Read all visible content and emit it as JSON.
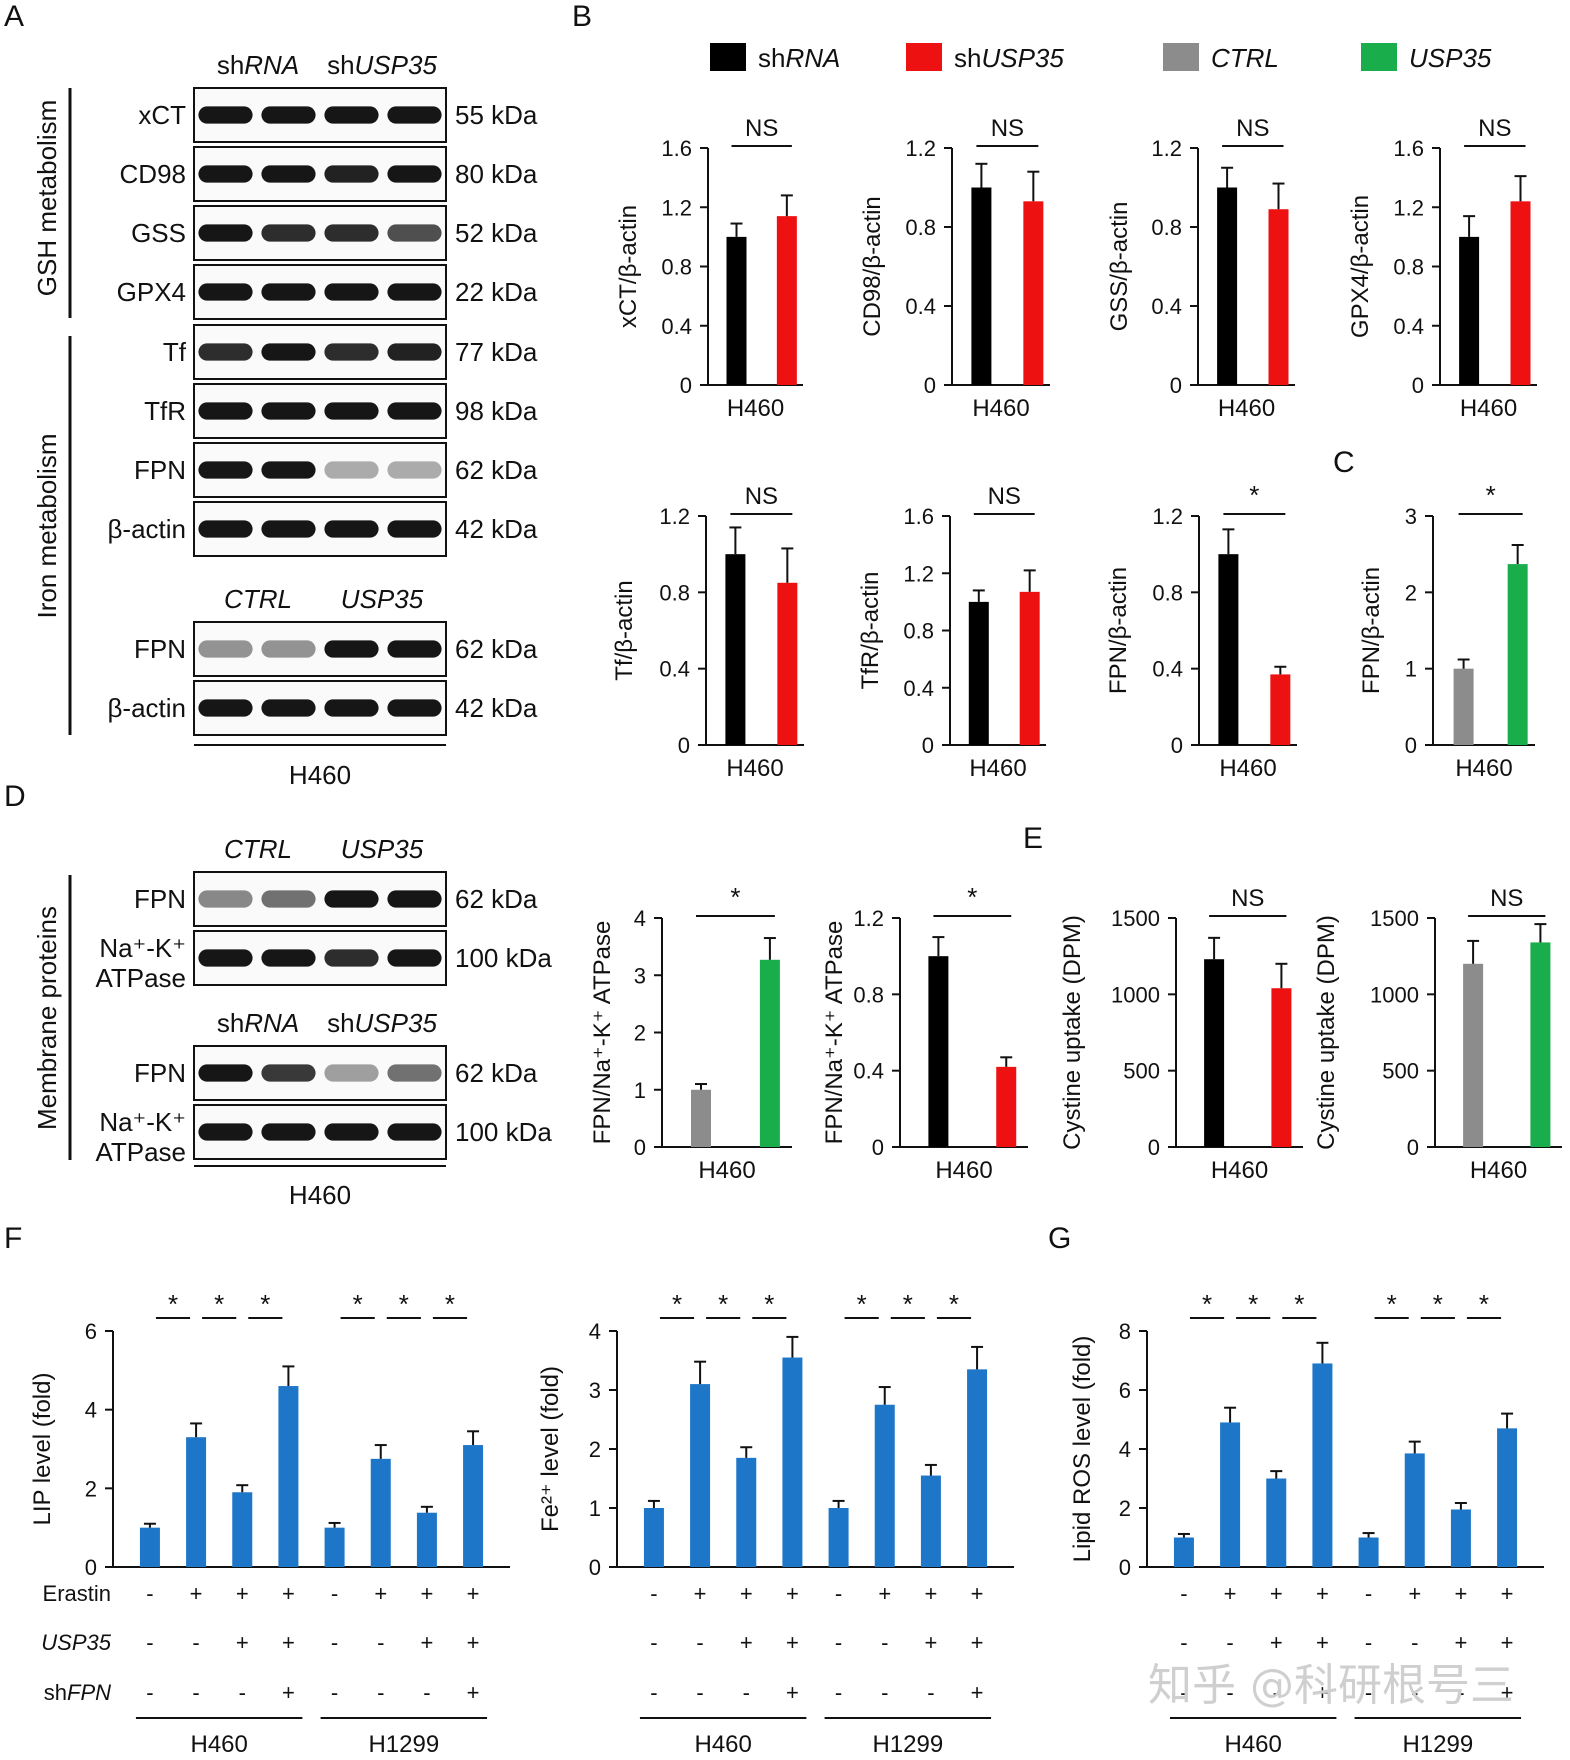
{
  "colors": {
    "shRNA": "#000000",
    "shUSP35": "#ee1111",
    "CTRL": "#8c8c8c",
    "USP35": "#1aad4b",
    "blue": "#1d76c8"
  },
  "panels": {
    "A": "A",
    "B": "B",
    "C": "C",
    "D": "D",
    "E": "E",
    "F": "F",
    "G": "G"
  },
  "legend": [
    {
      "pre": "sh",
      "it": "RNA",
      "color": "#000000"
    },
    {
      "pre": "sh",
      "it": "USP35",
      "color": "#ee1111"
    },
    {
      "pre": "",
      "it": "CTRL",
      "color": "#8c8c8c"
    },
    {
      "pre": "",
      "it": "USP35",
      "color": "#1aad4b"
    }
  ],
  "blotA": {
    "header1": {
      "a_pre": "sh",
      "a_it": "RNA",
      "b_pre": "sh",
      "b_it": "USP35"
    },
    "header2": {
      "a": "CTRL",
      "b": "USP35"
    },
    "group1": "GSH metabolism",
    "group2": "Iron metabolism",
    "rows1": [
      {
        "label": "xCT",
        "kda": "55 kDa",
        "lanes": [
          1,
          1,
          1,
          1
        ]
      },
      {
        "label": "CD98",
        "kda": "80 kDa",
        "lanes": [
          1,
          1,
          0.95,
          1
        ]
      },
      {
        "label": "GSS",
        "kda": "52 kDa",
        "lanes": [
          1,
          0.9,
          0.9,
          0.75
        ]
      },
      {
        "label": "GPX4",
        "kda": "22 kDa",
        "lanes": [
          1,
          1,
          1,
          1
        ]
      },
      {
        "label": "Tf",
        "kda": "77 kDa",
        "lanes": [
          0.9,
          1,
          0.9,
          0.95
        ]
      },
      {
        "label": "TfR",
        "kda": "98 kDa",
        "lanes": [
          1,
          1,
          1,
          1
        ]
      },
      {
        "label": "FPN",
        "kda": "62 kDa",
        "lanes": [
          1,
          1,
          0.35,
          0.35
        ]
      },
      {
        "label": "β-actin",
        "kda": "42 kDa",
        "lanes": [
          1,
          1,
          1,
          1
        ]
      }
    ],
    "rows2": [
      {
        "label": "FPN",
        "kda": "62 kDa",
        "lanes": [
          0.45,
          0.45,
          1,
          1
        ]
      },
      {
        "label": "β-actin",
        "kda": "42 kDa",
        "lanes": [
          1,
          1,
          1,
          1
        ]
      }
    ],
    "cell": "H460"
  },
  "blotD": {
    "group": "Membrane proteins",
    "header1": {
      "a": "CTRL",
      "b": "USP35"
    },
    "header2": {
      "a_pre": "sh",
      "a_it": "RNA",
      "b_pre": "sh",
      "b_it": "USP35"
    },
    "rows1": [
      {
        "label": "FPN",
        "kda": "62 kDa",
        "lanes": [
          0.5,
          0.6,
          1,
          1
        ]
      },
      {
        "label": "Na⁺-K⁺",
        "label2": "ATPase",
        "kda": "100 kDa",
        "lanes": [
          1,
          1,
          0.9,
          1
        ]
      }
    ],
    "rows2": [
      {
        "label": "FPN",
        "kda": "62 kDa",
        "lanes": [
          1,
          0.85,
          0.4,
          0.6
        ]
      },
      {
        "label": "Na⁺-K⁺",
        "label2": "ATPase",
        "kda": "100 kDa",
        "lanes": [
          1,
          1,
          1,
          1
        ]
      }
    ],
    "cell": "H460"
  },
  "chart_data": [
    {
      "id": "B1",
      "type": "bar",
      "panel": "B",
      "ylabel": "xCT/β-actin",
      "xlabel": "H460",
      "ylim": [
        0,
        1.6
      ],
      "ticks": [
        "0",
        "0.4",
        "0.8",
        "1.2",
        "1.6"
      ],
      "categories": [
        "shRNA",
        "shUSP35"
      ],
      "values": [
        1.0,
        1.14
      ],
      "errors": [
        0.09,
        0.14
      ],
      "colors": [
        "#000000",
        "#ee1111"
      ],
      "sig": "NS"
    },
    {
      "id": "B2",
      "type": "bar",
      "panel": "B",
      "ylabel": "CD98/β-actin",
      "xlabel": "H460",
      "ylim": [
        0,
        1.2
      ],
      "ticks": [
        "0",
        "0.4",
        "0.8",
        "1.2"
      ],
      "categories": [
        "shRNA",
        "shUSP35"
      ],
      "values": [
        1.0,
        0.93
      ],
      "errors": [
        0.12,
        0.15
      ],
      "colors": [
        "#000000",
        "#ee1111"
      ],
      "sig": "NS"
    },
    {
      "id": "B3",
      "type": "bar",
      "panel": "B",
      "ylabel": "GSS/β-actin",
      "xlabel": "H460",
      "ylim": [
        0,
        1.2
      ],
      "ticks": [
        "0",
        "0.4",
        "0.8",
        "1.2"
      ],
      "categories": [
        "shRNA",
        "shUSP35"
      ],
      "values": [
        1.0,
        0.89
      ],
      "errors": [
        0.1,
        0.13
      ],
      "colors": [
        "#000000",
        "#ee1111"
      ],
      "sig": "NS"
    },
    {
      "id": "B4",
      "type": "bar",
      "panel": "B",
      "ylabel": "GPX4/β-actin",
      "xlabel": "H460",
      "ylim": [
        0,
        1.6
      ],
      "ticks": [
        "0",
        "0.4",
        "0.8",
        "1.2",
        "1.6"
      ],
      "categories": [
        "shRNA",
        "shUSP35"
      ],
      "values": [
        1.0,
        1.24
      ],
      "errors": [
        0.14,
        0.17
      ],
      "colors": [
        "#000000",
        "#ee1111"
      ],
      "sig": "NS"
    },
    {
      "id": "B5",
      "type": "bar",
      "panel": "B",
      "ylabel": "Tf/β-actin",
      "xlabel": "H460",
      "ylim": [
        0,
        1.2
      ],
      "ticks": [
        "0",
        "0.4",
        "0.8",
        "1.2"
      ],
      "categories": [
        "shRNA",
        "shUSP35"
      ],
      "values": [
        1.0,
        0.85
      ],
      "errors": [
        0.14,
        0.18
      ],
      "colors": [
        "#000000",
        "#ee1111"
      ],
      "sig": "NS"
    },
    {
      "id": "B6",
      "type": "bar",
      "panel": "B",
      "ylabel": "TfR/β-actin",
      "xlabel": "H460",
      "ylim": [
        0,
        1.6
      ],
      "ticks": [
        "0",
        "0.4",
        "0.8",
        "1.2",
        "1.6"
      ],
      "categories": [
        "shRNA",
        "shUSP35"
      ],
      "values": [
        1.0,
        1.07
      ],
      "errors": [
        0.08,
        0.15
      ],
      "colors": [
        "#000000",
        "#ee1111"
      ],
      "sig": "NS"
    },
    {
      "id": "B7",
      "type": "bar",
      "panel": "B",
      "ylabel": "FPN/β-actin",
      "xlabel": "H460",
      "ylim": [
        0,
        1.2
      ],
      "ticks": [
        "0",
        "0.4",
        "0.8",
        "1.2"
      ],
      "categories": [
        "shRNA",
        "shUSP35"
      ],
      "values": [
        1.0,
        0.37
      ],
      "errors": [
        0.13,
        0.04
      ],
      "colors": [
        "#000000",
        "#ee1111"
      ],
      "sig": "*"
    },
    {
      "id": "C",
      "type": "bar",
      "panel": "C",
      "ylabel": "FPN/β-actin",
      "xlabel": "H460",
      "ylim": [
        0,
        3
      ],
      "ticks": [
        "0",
        "1",
        "2",
        "3"
      ],
      "categories": [
        "CTRL",
        "USP35"
      ],
      "values": [
        1.0,
        2.37
      ],
      "errors": [
        0.12,
        0.25
      ],
      "colors": [
        "#8c8c8c",
        "#1aad4b"
      ],
      "sig": "*"
    },
    {
      "id": "D1",
      "type": "bar",
      "panel": "D",
      "ylabel": "FPN/Na⁺-K⁺ ATPase",
      "xlabel": "H460",
      "ylim": [
        0,
        4
      ],
      "ticks": [
        "0",
        "1",
        "2",
        "3",
        "4"
      ],
      "categories": [
        "CTRL",
        "USP35"
      ],
      "values": [
        1.0,
        3.27
      ],
      "errors": [
        0.1,
        0.38
      ],
      "colors": [
        "#8c8c8c",
        "#1aad4b"
      ],
      "sig": "*"
    },
    {
      "id": "D2",
      "type": "bar",
      "panel": "D",
      "ylabel": "FPN/Na⁺-K⁺ ATPase",
      "xlabel": "H460",
      "ylim": [
        0,
        1.2
      ],
      "ticks": [
        "0",
        "0.4",
        "0.8",
        "1.2"
      ],
      "categories": [
        "shRNA",
        "shUSP35"
      ],
      "values": [
        1.0,
        0.42
      ],
      "errors": [
        0.1,
        0.05
      ],
      "colors": [
        "#000000",
        "#ee1111"
      ],
      "sig": "*"
    },
    {
      "id": "E1",
      "type": "bar",
      "panel": "E",
      "ylabel": "Cystine uptake (DPM)",
      "xlabel": "H460",
      "ylim": [
        0,
        1500
      ],
      "ticks": [
        "0",
        "500",
        "1000",
        "1500"
      ],
      "categories": [
        "shRNA",
        "shUSP35"
      ],
      "values": [
        1230,
        1040
      ],
      "errors": [
        140,
        160
      ],
      "colors": [
        "#000000",
        "#ee1111"
      ],
      "sig": "NS"
    },
    {
      "id": "E2",
      "type": "bar",
      "panel": "E",
      "ylabel": "Cystine uptake (DPM)",
      "xlabel": "H460",
      "ylim": [
        0,
        1500
      ],
      "ticks": [
        "0",
        "500",
        "1000",
        "1500"
      ],
      "categories": [
        "CTRL",
        "USP35"
      ],
      "values": [
        1200,
        1340
      ],
      "errors": [
        150,
        120
      ],
      "colors": [
        "#8c8c8c",
        "#1aad4b"
      ],
      "sig": "NS"
    },
    {
      "id": "F1",
      "type": "bar",
      "panel": "F",
      "ylabel": "LIP level (fold)",
      "ylim": [
        0,
        6
      ],
      "ticks": [
        "0",
        "2",
        "4",
        "6"
      ],
      "values": [
        1.0,
        3.3,
        1.9,
        4.6,
        1.0,
        2.75,
        1.38,
        3.1
      ],
      "errors": [
        0.1,
        0.35,
        0.18,
        0.5,
        0.12,
        0.35,
        0.15,
        0.35
      ],
      "color": "#1d76c8",
      "sig": [
        "*",
        "*",
        "*",
        "*",
        "*",
        "*"
      ],
      "rowlabels": [
        {
          "pre": "",
          "it": "",
          "post": "Erastin"
        },
        {
          "pre": "",
          "it": "USP35",
          "post": ""
        },
        {
          "pre": "sh",
          "it": "FPN",
          "post": ""
        }
      ],
      "signs": [
        [
          "-",
          "+",
          "+",
          "+",
          "-",
          "+",
          "+",
          "+"
        ],
        [
          "-",
          "-",
          "+",
          "+",
          "-",
          "-",
          "+",
          "+"
        ],
        [
          "-",
          "-",
          "-",
          "+",
          "-",
          "-",
          "-",
          "+"
        ]
      ],
      "groups": [
        "H460",
        "H1299"
      ]
    },
    {
      "id": "F2",
      "type": "bar",
      "panel": "F",
      "ylabel": "Fe²⁺ level (fold)",
      "ylim": [
        0,
        4
      ],
      "ticks": [
        "0",
        "1",
        "2",
        "3",
        "4"
      ],
      "values": [
        1.0,
        3.1,
        1.85,
        3.55,
        1.0,
        2.75,
        1.55,
        3.35
      ],
      "errors": [
        0.12,
        0.38,
        0.18,
        0.35,
        0.12,
        0.3,
        0.18,
        0.38
      ],
      "color": "#1d76c8",
      "sig": [
        "*",
        "*",
        "*",
        "*",
        "*",
        "*"
      ],
      "signs": [
        [
          "-",
          "+",
          "+",
          "+",
          "-",
          "+",
          "+",
          "+"
        ],
        [
          "-",
          "-",
          "+",
          "+",
          "-",
          "-",
          "+",
          "+"
        ],
        [
          "-",
          "-",
          "-",
          "+",
          "-",
          "-",
          "-",
          "+"
        ]
      ],
      "groups": [
        "H460",
        "H1299"
      ]
    },
    {
      "id": "G",
      "type": "bar",
      "panel": "G",
      "ylabel": "Lipid ROS level (fold)",
      "ylim": [
        0,
        8
      ],
      "ticks": [
        "0",
        "2",
        "4",
        "6",
        "8"
      ],
      "values": [
        1.0,
        4.9,
        3.0,
        6.9,
        1.0,
        3.85,
        1.95,
        4.7
      ],
      "errors": [
        0.12,
        0.5,
        0.25,
        0.7,
        0.15,
        0.4,
        0.22,
        0.5
      ],
      "color": "#1d76c8",
      "sig": [
        "*",
        "*",
        "*",
        "*",
        "*",
        "*"
      ],
      "signs": [
        [
          "-",
          "+",
          "+",
          "+",
          "-",
          "+",
          "+",
          "+"
        ],
        [
          "-",
          "-",
          "+",
          "+",
          "-",
          "-",
          "+",
          "+"
        ],
        [
          "-",
          "-",
          "-",
          "+",
          "-",
          "-",
          "-",
          "+"
        ]
      ],
      "groups": [
        "H460",
        "H1299"
      ]
    }
  ],
  "watermark": "知乎 @科研根号三"
}
